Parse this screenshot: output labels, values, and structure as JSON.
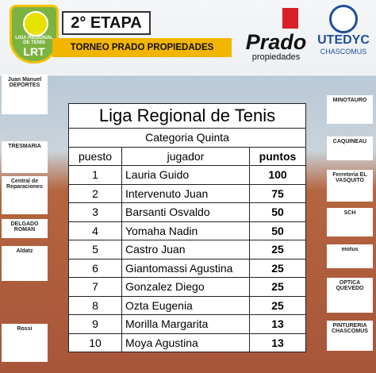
{
  "header": {
    "logo_text": "LIGA REGIONAL DE TENIS",
    "logo_initials": "LRT",
    "stage": "2° ETAPA",
    "tournament": "TORNEO PRADO PROPIEDADES",
    "sponsor_main": "Prado",
    "sponsor_main_sub": "propiedades",
    "org": "UTEDYC",
    "org_sub": "CHASCOMUS"
  },
  "sponsors_left": [
    "Juan Manuel DEPORTES",
    "TRESMARIA",
    "Central de Reparaciones",
    "DELGADO ROMAN",
    "Aldatz",
    "Rossi"
  ],
  "sponsors_right": [
    "MINOTAURO",
    "CAQUINEAU",
    "Ferreteria EL VASQUITO",
    "SCH",
    "motus",
    "OPTICA QUEVEDO",
    "PINTURERIA CHASCOMUS"
  ],
  "table": {
    "title": "Liga Regional de Tenis",
    "subtitle": "Categoria Quinta",
    "columns": [
      "puesto",
      "jugador",
      "puntos"
    ],
    "rows": [
      [
        "1",
        "Lauria Guido",
        "100"
      ],
      [
        "2",
        "Intervenuto Juan",
        "75"
      ],
      [
        "3",
        "Barsanti Osvaldo",
        "50"
      ],
      [
        "4",
        "Yomaha Nadin",
        "50"
      ],
      [
        "5",
        "Castro Juan",
        "25"
      ],
      [
        "6",
        "Giantomassi Agustina",
        "25"
      ],
      [
        "7",
        "Gonzalez Diego",
        "25"
      ],
      [
        "8",
        "Ozta Eugenia",
        "25"
      ],
      [
        "9",
        "Morilla Margarita",
        "13"
      ],
      [
        "10",
        "Moya Agustina",
        "13"
      ]
    ]
  }
}
